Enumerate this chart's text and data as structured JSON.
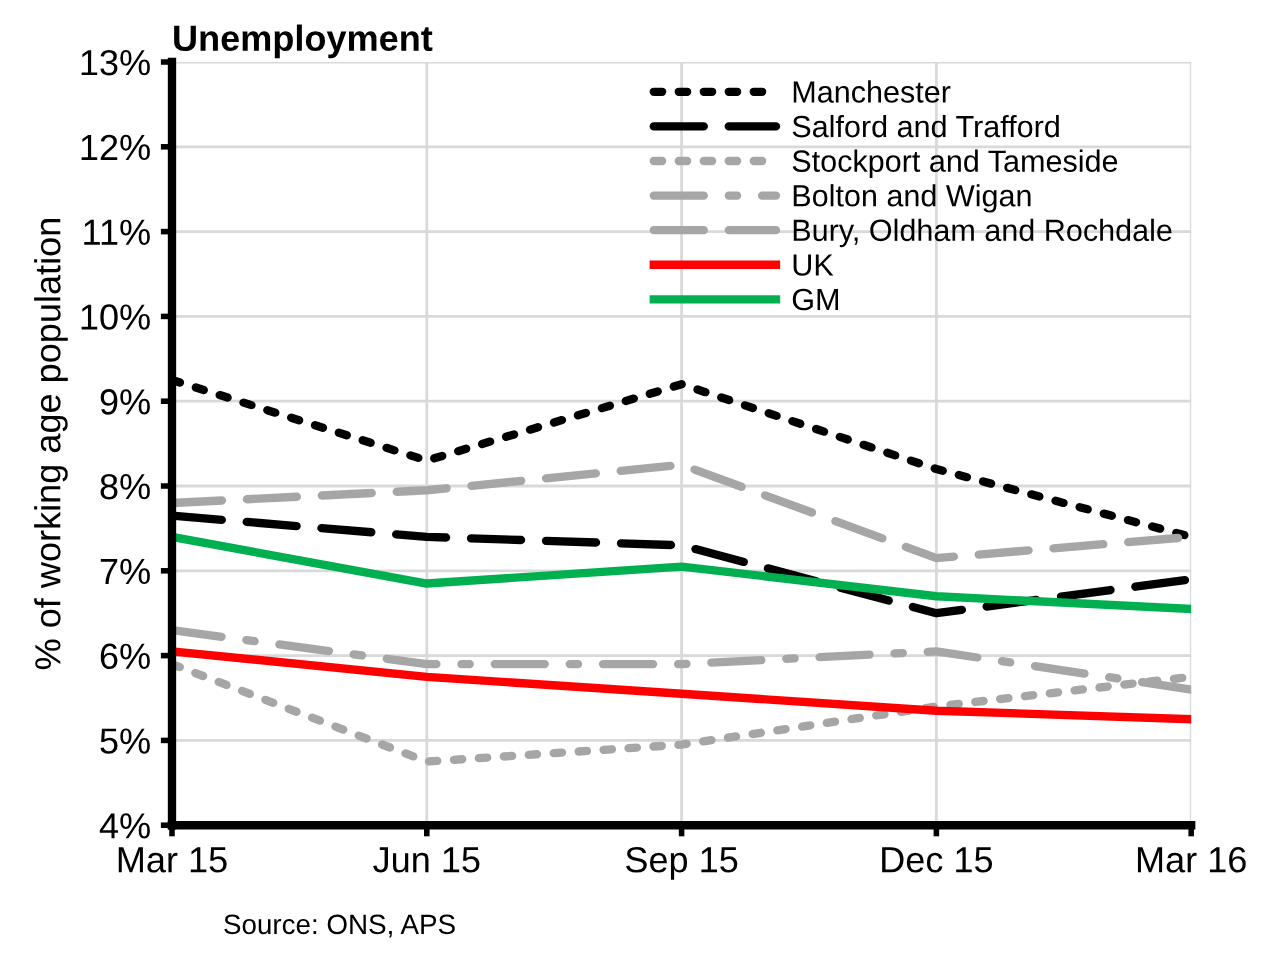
{
  "chart_data": {
    "type": "line",
    "title": "Unemployment",
    "ylabel": "% of working age population",
    "categories": [
      "Mar 15",
      "Jun 15",
      "Sep 15",
      "Dec 15",
      "Mar 16"
    ],
    "ylim": [
      4,
      13
    ],
    "yticks": [
      {
        "value": 4,
        "label": "4%"
      },
      {
        "value": 5,
        "label": "5%"
      },
      {
        "value": 6,
        "label": "6%"
      },
      {
        "value": 7,
        "label": "7%"
      },
      {
        "value": 8,
        "label": "8%"
      },
      {
        "value": 9,
        "label": "9%"
      },
      {
        "value": 10,
        "label": "10%"
      },
      {
        "value": 11,
        "label": "11%"
      },
      {
        "value": 12,
        "label": "12%"
      },
      {
        "value": 13,
        "label": "13%"
      }
    ],
    "grid": true,
    "legend": "top right",
    "series": [
      {
        "name": "Manchester",
        "color": "#000000",
        "line_style": "dotted",
        "values": [
          9.25,
          8.3,
          9.2,
          8.2,
          7.4
        ]
      },
      {
        "name": "Salford and Trafford",
        "color": "#000000",
        "line_style": "dashed",
        "values": [
          7.65,
          7.4,
          7.3,
          6.5,
          6.9
        ]
      },
      {
        "name": "Stockport and Tameside",
        "color": "#a6a6a6",
        "line_style": "dotted",
        "values": [
          5.9,
          4.75,
          4.95,
          5.4,
          5.75
        ]
      },
      {
        "name": "Bolton and Wigan",
        "color": "#a6a6a6",
        "line_style": "dashdot",
        "values": [
          6.3,
          5.9,
          5.9,
          6.05,
          5.6
        ]
      },
      {
        "name": "Bury, Oldham and Rochdale",
        "color": "#a6a6a6",
        "line_style": "dashed",
        "values": [
          7.8,
          7.95,
          8.25,
          7.15,
          7.4
        ]
      },
      {
        "name": "UK",
        "color": "#ff0000",
        "line_style": "solid",
        "values": [
          6.05,
          5.75,
          5.55,
          5.35,
          5.25
        ]
      },
      {
        "name": "GM",
        "color": "#00b050",
        "line_style": "solid",
        "values": [
          7.4,
          6.85,
          7.05,
          6.7,
          6.55
        ]
      }
    ],
    "annotations": [
      "Source: ONS, APS"
    ]
  }
}
